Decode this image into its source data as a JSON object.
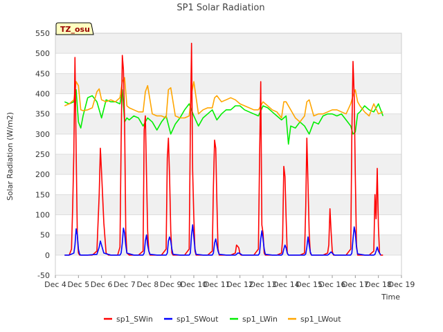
{
  "chart_data": {
    "type": "line",
    "title": "SP1 Solar Radiation",
    "xlabel": "Time",
    "ylabel": "Solar Radiation (W/m2)",
    "timezone_label": "TZ_osu",
    "xlim": [
      4,
      19
    ],
    "ylim": [
      -50,
      550
    ],
    "x_ticks": [
      4,
      5,
      6,
      7,
      8,
      9,
      10,
      11,
      12,
      13,
      14,
      15,
      16,
      17,
      18,
      19
    ],
    "x_tick_labels": [
      "Dec 4",
      "Dec 5",
      "Dec 6",
      "Dec 7",
      "Dec 8",
      "Dec 9",
      "Dec 10",
      "Dec 11",
      "Dec 12",
      "Dec 13",
      "Dec 14",
      "Dec 15",
      "Dec 16",
      "Dec 17",
      "Dec 18",
      "Dec 19"
    ],
    "y_ticks": [
      -50,
      0,
      50,
      100,
      150,
      200,
      250,
      300,
      350,
      400,
      450,
      500,
      550
    ],
    "y_tick_labels": [
      "-50",
      "0",
      "50",
      "100",
      "150",
      "200",
      "250",
      "300",
      "350",
      "400",
      "450",
      "500",
      "550"
    ],
    "legend_position": "bottom",
    "series": [
      {
        "name": "sp1_SWin",
        "color": "#ff0000",
        "x": [
          4.4,
          4.6,
          4.7,
          4.75,
          4.8,
          4.85,
          4.9,
          4.95,
          5.0,
          5.05,
          5.1,
          5.2,
          5.4,
          5.6,
          5.8,
          5.9,
          5.95,
          6.0,
          6.05,
          6.1,
          6.2,
          6.3,
          6.5,
          6.7,
          6.8,
          6.85,
          6.9,
          6.95,
          7.0,
          7.05,
          7.1,
          7.2,
          7.4,
          7.6,
          7.8,
          7.85,
          7.9,
          7.95,
          8.0,
          8.05,
          8.1,
          8.2,
          8.4,
          8.6,
          8.8,
          8.85,
          8.9,
          8.95,
          9.0,
          9.05,
          9.1,
          9.2,
          9.4,
          9.6,
          9.8,
          9.85,
          9.9,
          9.95,
          10.0,
          10.05,
          10.1,
          10.2,
          10.4,
          10.6,
          10.8,
          10.85,
          10.9,
          10.95,
          11.0,
          11.05,
          11.1,
          11.2,
          11.4,
          11.6,
          11.8,
          11.85,
          11.9,
          11.95,
          12.0,
          12.05,
          12.1,
          12.2,
          12.4,
          12.6,
          12.8,
          12.85,
          12.9,
          12.95,
          13.0,
          13.05,
          13.1,
          13.2,
          13.4,
          13.6,
          13.8,
          13.85,
          13.9,
          13.95,
          14.0,
          14.05,
          14.1,
          14.2,
          14.4,
          14.6,
          14.8,
          14.85,
          14.9,
          14.95,
          15.0,
          15.05,
          15.1,
          15.2,
          15.4,
          15.6,
          15.8,
          15.85,
          15.9,
          15.95,
          16.0,
          16.05,
          16.1,
          16.2,
          16.4,
          16.6,
          16.8,
          16.85,
          16.9,
          16.95,
          17.0,
          17.05,
          17.1,
          17.2,
          17.4,
          17.6,
          17.8,
          17.85,
          17.9,
          17.95,
          18.0,
          18.05,
          18.1,
          18.2
        ],
        "y": [
          0,
          0,
          15,
          120,
          255,
          490,
          260,
          50,
          5,
          0,
          0,
          0,
          0,
          0,
          10,
          150,
          265,
          205,
          145,
          80,
          5,
          0,
          0,
          0,
          20,
          280,
          495,
          460,
          330,
          60,
          5,
          0,
          0,
          0,
          10,
          310,
          345,
          195,
          60,
          10,
          0,
          0,
          0,
          0,
          15,
          240,
          290,
          195,
          60,
          5,
          0,
          0,
          0,
          0,
          15,
          310,
          525,
          210,
          95,
          10,
          0,
          0,
          0,
          0,
          10,
          170,
          285,
          265,
          135,
          15,
          0,
          0,
          0,
          0,
          5,
          25,
          22,
          18,
          3,
          0,
          0,
          0,
          0,
          0,
          15,
          240,
          430,
          75,
          55,
          5,
          0,
          0,
          0,
          0,
          5,
          40,
          220,
          195,
          95,
          5,
          0,
          0,
          0,
          0,
          5,
          120,
          290,
          175,
          55,
          5,
          0,
          0,
          0,
          0,
          5,
          25,
          115,
          60,
          10,
          0,
          0,
          0,
          0,
          0,
          15,
          300,
          480,
          395,
          200,
          25,
          0,
          0,
          0,
          0,
          10,
          150,
          90,
          215,
          70,
          5,
          0,
          0
        ]
      },
      {
        "name": "sp1_SWout",
        "color": "#0000ff",
        "x": [
          4.4,
          4.6,
          4.8,
          4.85,
          4.9,
          4.95,
          5.0,
          5.05,
          5.1,
          5.4,
          5.8,
          5.9,
          5.95,
          6.0,
          6.05,
          6.1,
          6.4,
          6.8,
          6.85,
          6.9,
          6.95,
          7.0,
          7.05,
          7.1,
          7.4,
          7.8,
          7.85,
          7.9,
          7.95,
          8.0,
          8.05,
          8.1,
          8.4,
          8.8,
          8.85,
          8.9,
          8.95,
          9.0,
          9.05,
          9.1,
          9.4,
          9.8,
          9.85,
          9.9,
          9.95,
          10.0,
          10.05,
          10.1,
          10.4,
          10.8,
          10.85,
          10.9,
          10.95,
          11.0,
          11.05,
          11.1,
          11.4,
          11.8,
          11.85,
          11.9,
          11.95,
          12.0,
          12.05,
          12.1,
          12.4,
          12.8,
          12.85,
          12.9,
          12.95,
          13.0,
          13.05,
          13.1,
          13.4,
          13.8,
          13.85,
          13.9,
          13.95,
          14.0,
          14.05,
          14.1,
          14.4,
          14.8,
          14.85,
          14.9,
          14.95,
          15.0,
          15.05,
          15.1,
          15.4,
          15.8,
          15.85,
          15.9,
          15.95,
          16.0,
          16.05,
          16.1,
          16.4,
          16.8,
          16.85,
          16.9,
          16.95,
          17.0,
          17.05,
          17.1,
          17.4,
          17.8,
          17.85,
          17.9,
          17.95,
          18.0,
          18.05,
          18.1
        ],
        "y": [
          0,
          0,
          5,
          25,
          65,
          50,
          15,
          2,
          0,
          0,
          2,
          20,
          35,
          25,
          15,
          5,
          0,
          0,
          5,
          30,
          67,
          55,
          25,
          5,
          0,
          0,
          5,
          35,
          50,
          25,
          10,
          2,
          0,
          0,
          5,
          35,
          45,
          35,
          15,
          2,
          0,
          0,
          5,
          50,
          75,
          45,
          15,
          2,
          0,
          0,
          5,
          30,
          40,
          25,
          10,
          2,
          0,
          0,
          2,
          5,
          5,
          4,
          2,
          0,
          0,
          0,
          5,
          40,
          60,
          40,
          15,
          2,
          0,
          0,
          3,
          15,
          25,
          18,
          5,
          0,
          0,
          0,
          3,
          20,
          45,
          25,
          8,
          0,
          0,
          0,
          2,
          5,
          8,
          5,
          2,
          0,
          0,
          0,
          5,
          40,
          70,
          55,
          20,
          3,
          0,
          0,
          2,
          10,
          20,
          10,
          5,
          0
        ]
      },
      {
        "name": "sp1_LWin",
        "color": "#00ee00",
        "x": [
          4.4,
          4.6,
          4.8,
          4.9,
          5.0,
          5.1,
          5.2,
          5.4,
          5.6,
          5.8,
          6.0,
          6.2,
          6.4,
          6.6,
          6.8,
          6.9,
          7.0,
          7.1,
          7.2,
          7.4,
          7.6,
          7.8,
          8.0,
          8.2,
          8.4,
          8.6,
          8.8,
          9.0,
          9.2,
          9.4,
          9.6,
          9.8,
          10.0,
          10.2,
          10.4,
          10.6,
          10.8,
          11.0,
          11.2,
          11.4,
          11.6,
          11.8,
          12.0,
          12.2,
          12.4,
          12.6,
          12.8,
          13.0,
          13.2,
          13.4,
          13.6,
          13.8,
          14.0,
          14.1,
          14.2,
          14.4,
          14.6,
          14.8,
          15.0,
          15.2,
          15.4,
          15.6,
          15.8,
          16.0,
          16.2,
          16.4,
          16.6,
          16.8,
          16.9,
          17.0,
          17.1,
          17.2,
          17.4,
          17.6,
          17.8,
          18.0,
          18.2
        ],
        "y": [
          380,
          375,
          380,
          410,
          330,
          315,
          345,
          390,
          395,
          380,
          340,
          385,
          380,
          380,
          375,
          410,
          330,
          340,
          335,
          345,
          340,
          320,
          340,
          330,
          310,
          330,
          345,
          300,
          325,
          340,
          360,
          375,
          345,
          320,
          340,
          350,
          360,
          335,
          350,
          360,
          360,
          370,
          370,
          360,
          355,
          350,
          345,
          370,
          365,
          355,
          345,
          335,
          345,
          275,
          320,
          315,
          330,
          320,
          300,
          330,
          325,
          345,
          350,
          350,
          345,
          350,
          335,
          320,
          300,
          305,
          350,
          355,
          370,
          360,
          355,
          375,
          345
        ]
      },
      {
        "name": "sp1_LWout",
        "color": "#ffa500",
        "x": [
          4.4,
          4.6,
          4.8,
          4.9,
          5.0,
          5.1,
          5.2,
          5.4,
          5.6,
          5.8,
          5.9,
          6.0,
          6.2,
          6.4,
          6.6,
          6.8,
          6.9,
          7.0,
          7.1,
          7.2,
          7.4,
          7.6,
          7.8,
          7.9,
          8.0,
          8.2,
          8.4,
          8.6,
          8.8,
          8.9,
          9.0,
          9.2,
          9.4,
          9.6,
          9.8,
          9.9,
          10.0,
          10.2,
          10.4,
          10.6,
          10.8,
          10.9,
          11.0,
          11.2,
          11.4,
          11.6,
          11.8,
          12.0,
          12.2,
          12.4,
          12.6,
          12.8,
          12.9,
          13.0,
          13.2,
          13.4,
          13.6,
          13.8,
          13.9,
          14.0,
          14.2,
          14.4,
          14.6,
          14.8,
          14.9,
          15.0,
          15.2,
          15.4,
          15.6,
          15.8,
          16.0,
          16.2,
          16.4,
          16.6,
          16.8,
          16.9,
          17.0,
          17.1,
          17.2,
          17.4,
          17.6,
          17.8,
          18.0,
          18.2
        ],
        "y": [
          370,
          375,
          385,
          430,
          420,
          360,
          358,
          360,
          365,
          405,
          412,
          385,
          380,
          385,
          380,
          390,
          430,
          440,
          370,
          365,
          360,
          355,
          355,
          405,
          420,
          350,
          345,
          345,
          340,
          410,
          415,
          345,
          340,
          340,
          345,
          400,
          430,
          350,
          360,
          365,
          365,
          390,
          395,
          380,
          385,
          390,
          385,
          375,
          370,
          365,
          360,
          360,
          370,
          380,
          370,
          360,
          355,
          340,
          380,
          380,
          360,
          340,
          330,
          345,
          380,
          385,
          345,
          350,
          350,
          355,
          360,
          360,
          355,
          350,
          375,
          395,
          410,
          380,
          370,
          355,
          345,
          375,
          350,
          355
        ]
      }
    ]
  }
}
